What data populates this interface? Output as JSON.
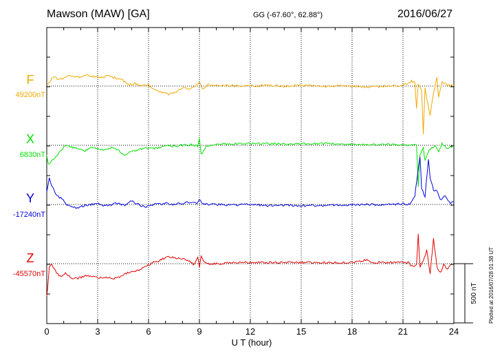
{
  "header": {
    "station": "Mawson (MAW)  [GA]",
    "coords": "GG (-67.60°,  62.88°)",
    "date": "2016/06/27"
  },
  "footer": {
    "plotted": "Plotted at 2016/07/28 01:38 UT"
  },
  "colors": {
    "F": "#f0a800",
    "X": "#00e000",
    "Y": "#0000e0",
    "Z": "#e00000"
  },
  "chart_data": {
    "type": "line",
    "xlabel": "U T (hour)",
    "xlim": [
      0,
      24
    ],
    "xticks": [
      "0",
      "3",
      "6",
      "9",
      "12",
      "15",
      "18",
      "21",
      "24"
    ],
    "scale_bar": "500 nT",
    "scale_bar_nT": 500,
    "series": [
      {
        "name": "F",
        "baseline_label": "49200nT",
        "baseline_nT": 49200,
        "x": [
          0,
          0.15,
          0.3,
          0.5,
          0.7,
          1.0,
          1.3,
          1.6,
          2.0,
          2.4,
          2.8,
          3.2,
          3.6,
          4.0,
          4.4,
          4.8,
          5.2,
          5.6,
          6.0,
          6.4,
          6.8,
          7.2,
          7.6,
          8.0,
          8.4,
          8.8,
          9.0,
          9.2,
          9.5,
          10.0,
          11.0,
          12.0,
          13.0,
          14.0,
          15.0,
          16.0,
          17.0,
          18.0,
          19.0,
          20.0,
          20.8,
          21.3,
          21.5,
          21.7,
          21.8,
          21.9,
          22.1,
          22.2,
          22.3,
          22.4,
          22.6,
          22.8,
          23.0,
          23.1,
          23.3,
          23.6,
          24.0
        ],
        "values": [
          49210,
          49230,
          49260,
          49280,
          49250,
          49270,
          49300,
          49270,
          49280,
          49290,
          49280,
          49270,
          49290,
          49270,
          49260,
          49210,
          49220,
          49200,
          49210,
          49160,
          49150,
          49130,
          49150,
          49190,
          49170,
          49200,
          49230,
          49180,
          49210,
          49210,
          49200,
          49200,
          49205,
          49200,
          49205,
          49200,
          49200,
          49200,
          49190,
          49200,
          49205,
          49220,
          49240,
          49230,
          49000,
          49220,
          49160,
          48790,
          49180,
          49100,
          48950,
          49140,
          49280,
          49100,
          49240,
          49210,
          49205
        ]
      },
      {
        "name": "X",
        "baseline_label": "6830nT",
        "baseline_nT": 6830,
        "x": [
          0,
          0.1,
          0.3,
          0.5,
          0.8,
          1.1,
          1.4,
          1.8,
          2.2,
          2.6,
          3.0,
          3.4,
          3.8,
          4.2,
          4.6,
          5.0,
          5.4,
          5.8,
          6.2,
          6.6,
          7.0,
          7.5,
          8.0,
          8.5,
          8.9,
          9.0,
          9.1,
          9.4,
          10.0,
          11.0,
          12.0,
          13.0,
          14.0,
          15.0,
          16.0,
          17.0,
          18.0,
          19.0,
          20.0,
          21.0,
          21.6,
          21.8,
          21.9,
          22.0,
          22.2,
          22.3,
          22.5,
          22.7,
          22.9,
          23.1,
          23.3,
          23.6,
          24.0
        ],
        "values": [
          6740,
          6670,
          6700,
          6720,
          6780,
          6830,
          6820,
          6800,
          6780,
          6810,
          6800,
          6790,
          6810,
          6790,
          6740,
          6780,
          6790,
          6810,
          6800,
          6810,
          6820,
          6825,
          6830,
          6835,
          6820,
          6880,
          6750,
          6820,
          6840,
          6840,
          6845,
          6845,
          6840,
          6840,
          6845,
          6840,
          6840,
          6835,
          6835,
          6835,
          6830,
          6830,
          6470,
          6750,
          6810,
          6700,
          6780,
          6810,
          6820,
          6780,
          6840,
          6800,
          6830
        ]
      },
      {
        "name": "Y",
        "baseline_label": "-17240nT",
        "baseline_nT": -17240,
        "x": [
          0,
          0.15,
          0.3,
          0.6,
          0.9,
          1.2,
          1.5,
          1.8,
          2.2,
          2.6,
          3.0,
          3.4,
          3.8,
          4.2,
          4.6,
          5.0,
          5.4,
          5.8,
          6.2,
          6.6,
          7.0,
          7.5,
          8.0,
          8.5,
          8.9,
          9.0,
          9.2,
          9.6,
          10.0,
          11.0,
          12.0,
          13.0,
          14.0,
          15.0,
          16.0,
          17.0,
          18.0,
          19.0,
          20.0,
          21.0,
          21.4,
          21.7,
          21.8,
          22.0,
          22.1,
          22.3,
          22.5,
          22.6,
          22.8,
          23.0,
          23.2,
          23.5,
          23.8,
          24.0
        ],
        "values": [
          -17130,
          -17020,
          -17080,
          -17170,
          -17190,
          -17240,
          -17260,
          -17270,
          -17250,
          -17240,
          -17230,
          -17250,
          -17240,
          -17230,
          -17250,
          -17210,
          -17240,
          -17260,
          -17240,
          -17240,
          -17230,
          -17240,
          -17230,
          -17220,
          -17230,
          -17200,
          -17230,
          -17240,
          -17240,
          -17245,
          -17240,
          -17250,
          -17245,
          -17250,
          -17250,
          -17245,
          -17245,
          -17240,
          -17240,
          -17235,
          -17240,
          -17170,
          -17050,
          -16830,
          -17100,
          -17180,
          -16850,
          -17010,
          -17120,
          -17120,
          -17200,
          -17170,
          -17230,
          -17220
        ]
      },
      {
        "name": "Z",
        "baseline_label": "-45570nT",
        "baseline_nT": -45570,
        "x": [
          0,
          0.05,
          0.15,
          0.3,
          0.5,
          0.8,
          1.1,
          1.5,
          1.9,
          2.3,
          2.7,
          3.1,
          3.5,
          3.9,
          4.3,
          4.7,
          5.1,
          5.5,
          5.9,
          6.3,
          6.7,
          7.1,
          7.5,
          7.9,
          8.3,
          8.7,
          8.9,
          9.0,
          9.1,
          9.3,
          9.6,
          10.0,
          11.0,
          12.0,
          13.0,
          14.0,
          15.0,
          16.0,
          17.0,
          18.0,
          18.8,
          19.3,
          20.0,
          20.8,
          21.3,
          21.6,
          21.8,
          21.9,
          22.0,
          22.2,
          22.4,
          22.6,
          22.8,
          23.0,
          23.2,
          23.4,
          23.6,
          23.8,
          24.0
        ],
        "values": [
          -45850,
          -45780,
          -45600,
          -45580,
          -45630,
          -45680,
          -45650,
          -45700,
          -45690,
          -45670,
          -45680,
          -45690,
          -45680,
          -45700,
          -45680,
          -45650,
          -45640,
          -45620,
          -45590,
          -45560,
          -45540,
          -45510,
          -45520,
          -45530,
          -45540,
          -45580,
          -45520,
          -45600,
          -45510,
          -45560,
          -45570,
          -45570,
          -45560,
          -45560,
          -45560,
          -45560,
          -45560,
          -45560,
          -45560,
          -45560,
          -45540,
          -45560,
          -45560,
          -45560,
          -45560,
          -45600,
          -45580,
          -45310,
          -45600,
          -45550,
          -45460,
          -45660,
          -45350,
          -45600,
          -45650,
          -45580,
          -45610,
          -45590,
          -45570
        ]
      }
    ]
  }
}
